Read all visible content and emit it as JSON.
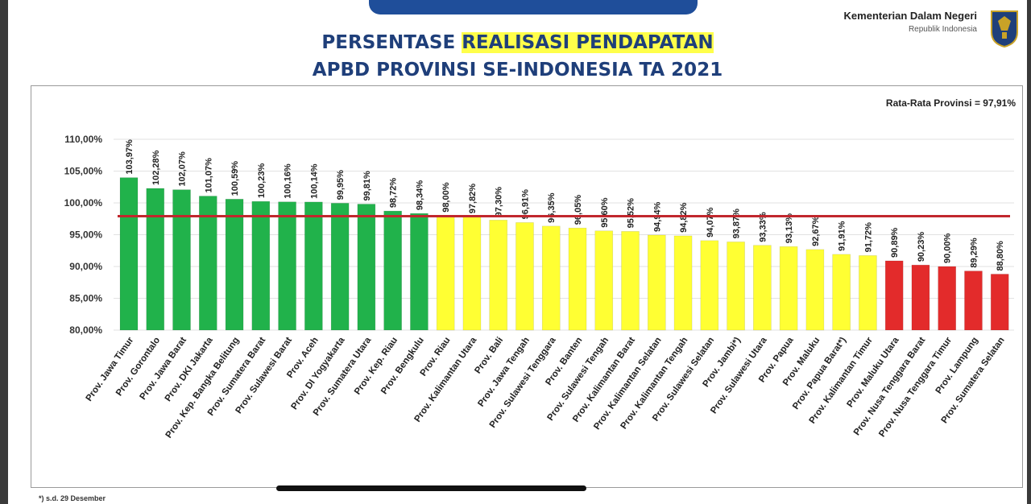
{
  "header": {
    "ministry_name": "Kementerian Dalam Negeri",
    "ministry_sub": "Republik Indonesia",
    "logo_icon": "garuda-emblem-icon"
  },
  "title": {
    "line1_pre": "PERSENTASE ",
    "line1_highlight": "REALISASI PENDAPATAN",
    "line2": "APBD PROVINSI SE-INDONESIA TA 2021"
  },
  "footnote": "*) s.d. 29 Desember",
  "colors": {
    "green": "#21b24b",
    "yellow": "#ffff33",
    "red": "#e32b2b",
    "average_line": "#c1272d",
    "title": "#1f3f7a",
    "highlight": "#ffff4a"
  },
  "chart_data": {
    "type": "bar",
    "annotation": "Rata-Rata Provinsi = 97,91%",
    "average": 97.91,
    "ylim": [
      80,
      110
    ],
    "yticks": [
      "80,00%",
      "85,00%",
      "90,00%",
      "95,00%",
      "100,00%",
      "105,00%",
      "110,00%"
    ],
    "ytick_values": [
      80,
      85,
      90,
      95,
      100,
      105,
      110
    ],
    "grid": true,
    "categories": [
      "Prov. Jawa Timur",
      "Prov. Gorontalo",
      "Prov. Jawa Barat",
      "Prov. DKI Jakarta",
      "Prov. Kep. Bangka Belitung",
      "Prov. Sumatera Barat",
      "Prov. Sulawesi Barat",
      "Prov. Aceh",
      "Prov. DI Yogyakarta",
      "Prov. Sumatera Utara",
      "Prov. Kep. Riau",
      "Prov. Bengkulu",
      "Prov. Riau",
      "Prov. Kalimantan Utara",
      "Prov. Bali",
      "Prov. Jawa Tengah",
      "Prov. Sulawesi Tenggara",
      "Prov. Banten",
      "Prov. Sulawesi Tengah",
      "Prov. Kalimantan Barat",
      "Prov. Kalimantan Selatan",
      "Prov. Kalimantan Tengah",
      "Prov. Sulawesi Selatan",
      "Prov. Jambi*)",
      "Prov. Sulawesi Utara",
      "Prov. Papua",
      "Prov. Maluku",
      "Prov. Papua Barat*)",
      "Prov. Kalimantan Timur",
      "Prov. Maluku Utara",
      "Prov. Nusa Tenggara Barat",
      "Prov. Nusa Tenggara Timur",
      "Prov. Lampung",
      "Prov. Sumatera Selatan"
    ],
    "values": [
      103.97,
      102.28,
      102.07,
      101.07,
      100.59,
      100.23,
      100.16,
      100.14,
      99.95,
      99.81,
      98.72,
      98.34,
      98.0,
      97.82,
      97.3,
      96.91,
      96.35,
      96.05,
      95.6,
      95.52,
      94.94,
      94.82,
      94.07,
      93.87,
      93.33,
      93.13,
      92.67,
      91.91,
      91.72,
      90.89,
      90.23,
      90.0,
      89.29,
      88.8
    ],
    "labels": [
      "103,97%",
      "102,28%",
      "102,07%",
      "101,07%",
      "100,59%",
      "100,23%",
      "100,16%",
      "100,14%",
      "99,95%",
      "99,81%",
      "98,72%",
      "98,34%",
      "98,00%",
      "97,82%",
      "97,30%",
      "96,91%",
      "96,35%",
      "96,05%",
      "95,60%",
      "95,52%",
      "94,94%",
      "94,82%",
      "94,07%",
      "93,87%",
      "93,33%",
      "93,13%",
      "92,67%",
      "91,91%",
      "91,72%",
      "90,89%",
      "90,23%",
      "90,00%",
      "89,29%",
      "88,80%"
    ],
    "bar_colors": [
      "green",
      "green",
      "green",
      "green",
      "green",
      "green",
      "green",
      "green",
      "green",
      "green",
      "green",
      "green",
      "yellow",
      "yellow",
      "yellow",
      "yellow",
      "yellow",
      "yellow",
      "yellow",
      "yellow",
      "yellow",
      "yellow",
      "yellow",
      "yellow",
      "yellow",
      "yellow",
      "yellow",
      "yellow",
      "yellow",
      "red",
      "red",
      "red",
      "red",
      "red"
    ]
  }
}
